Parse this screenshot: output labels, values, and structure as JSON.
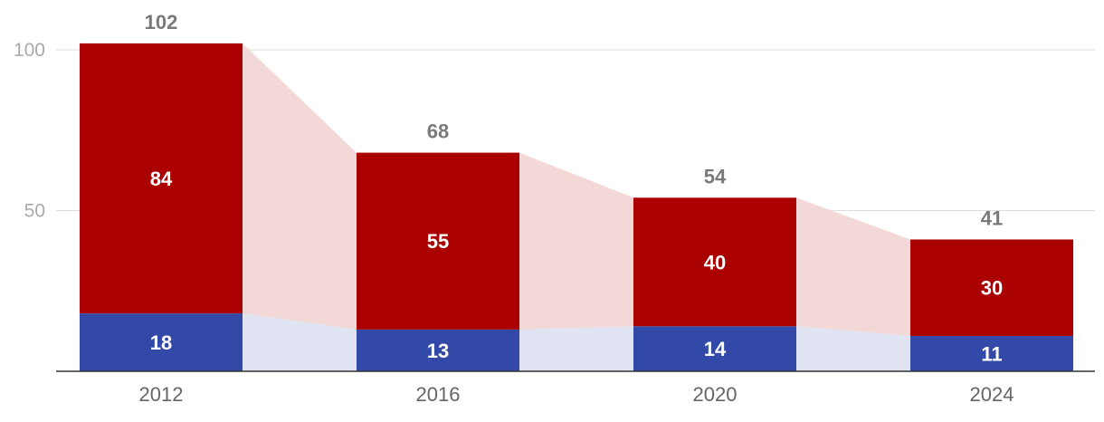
{
  "chart_data": {
    "type": "bar",
    "stacked": true,
    "categories": [
      "2012",
      "2016",
      "2020",
      "2024"
    ],
    "series": [
      {
        "values": [
          18,
          13,
          14,
          11
        ],
        "color": "#3349a8",
        "band_color": "#e0e3f2"
      },
      {
        "values": [
          84,
          55,
          40,
          30
        ],
        "color": "#aa0000",
        "band_color": "#f3d8d8"
      }
    ],
    "totals": [
      102,
      68,
      54,
      41
    ],
    "yticks": [
      50,
      100
    ],
    "ylim": [
      0,
      100
    ],
    "grid": true,
    "legend": "none",
    "title": "",
    "xlabel": "",
    "ylabel": ""
  }
}
